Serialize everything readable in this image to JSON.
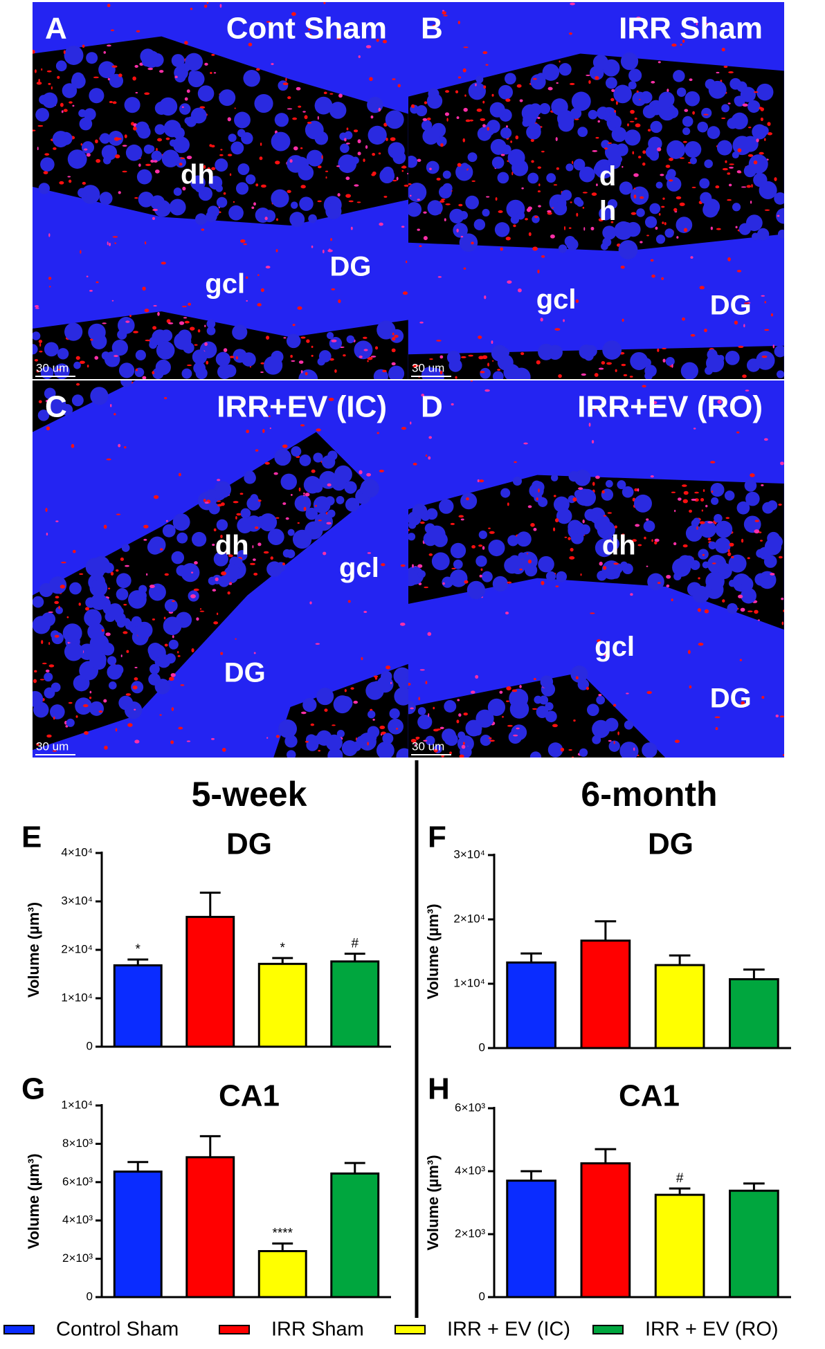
{
  "images": [
    {
      "panel": "A",
      "title": "Cont Sham",
      "labels": [
        "dh",
        "gcl",
        "DG"
      ],
      "scale_bar": "30 um"
    },
    {
      "panel": "B",
      "title": "IRR Sham",
      "labels": [
        "d",
        "h",
        "gcl",
        "DG"
      ],
      "scale_bar": "30 um"
    },
    {
      "panel": "C",
      "title": "IRR+EV (IC)",
      "labels": [
        "dh",
        "gcl",
        "DG"
      ],
      "scale_bar": "30 um"
    },
    {
      "panel": "D",
      "title": "IRR+EV (RO)",
      "labels": [
        "dh",
        "gcl",
        "DG"
      ],
      "scale_bar": "30 um"
    }
  ],
  "column_titles": [
    "5-week",
    "6-month"
  ],
  "legend": {
    "names": [
      "Control Sham",
      "IRR Sham",
      "IRR + EV (IC)",
      "IRR + EV (RO)"
    ],
    "colors": [
      "#0a2cff",
      "#ff0000",
      "#ffff00",
      "#00a63e"
    ]
  },
  "chart_data": [
    {
      "type": "bar",
      "panel": "E",
      "title": "DG",
      "ylabel": "Volume (µm³)",
      "values": [
        16800,
        26800,
        17100,
        17600
      ],
      "errors": [
        1200,
        5000,
        1200,
        1600
      ],
      "significance": [
        "*",
        null,
        "*",
        "#"
      ],
      "ylim": [
        0,
        40000
      ],
      "yticks": [
        0,
        {
          "value": 10000,
          "label": "1×10⁴"
        },
        {
          "value": 20000,
          "label": "2×10⁴"
        },
        {
          "value": 30000,
          "label": "3×10⁴"
        },
        {
          "value": 40000,
          "label": "4×10⁴"
        }
      ]
    },
    {
      "type": "bar",
      "panel": "F",
      "title": "DG",
      "ylabel": "Volume (µm³)",
      "values": [
        13300,
        16700,
        12900,
        10700
      ],
      "errors": [
        1400,
        3000,
        1500,
        1500
      ],
      "significance": [
        null,
        null,
        null,
        null
      ],
      "ylim": [
        0,
        30000
      ],
      "yticks": [
        0,
        {
          "value": 10000,
          "label": "1×10⁴"
        },
        {
          "value": 20000,
          "label": "2×10⁴"
        },
        {
          "value": 30000,
          "label": "3×10⁴"
        }
      ]
    },
    {
      "type": "bar",
      "panel": "G",
      "title": "CA1",
      "ylabel": "Volume (µm³)",
      "values": [
        6550,
        7300,
        2400,
        6450
      ],
      "errors": [
        500,
        1100,
        400,
        550
      ],
      "significance": [
        null,
        null,
        "****",
        null
      ],
      "ylim": [
        0,
        10000
      ],
      "yticks": [
        0,
        {
          "value": 2000,
          "label": "2×10³"
        },
        {
          "value": 4000,
          "label": "4×10³"
        },
        {
          "value": 6000,
          "label": "6×10³"
        },
        {
          "value": 8000,
          "label": "8×10³"
        },
        {
          "value": 10000,
          "label": "1×10⁴"
        }
      ]
    },
    {
      "type": "bar",
      "panel": "H",
      "title": "CA1",
      "ylabel": "Volume (µm³)",
      "values": [
        3700,
        4250,
        3250,
        3380
      ],
      "errors": [
        300,
        450,
        200,
        230
      ],
      "significance": [
        null,
        null,
        "#",
        null
      ],
      "ylim": [
        0,
        6000
      ],
      "yticks": [
        0,
        {
          "value": 2000,
          "label": "2×10³"
        },
        {
          "value": 4000,
          "label": "4×10³"
        },
        {
          "value": 6000,
          "label": "6×10³"
        }
      ]
    }
  ]
}
